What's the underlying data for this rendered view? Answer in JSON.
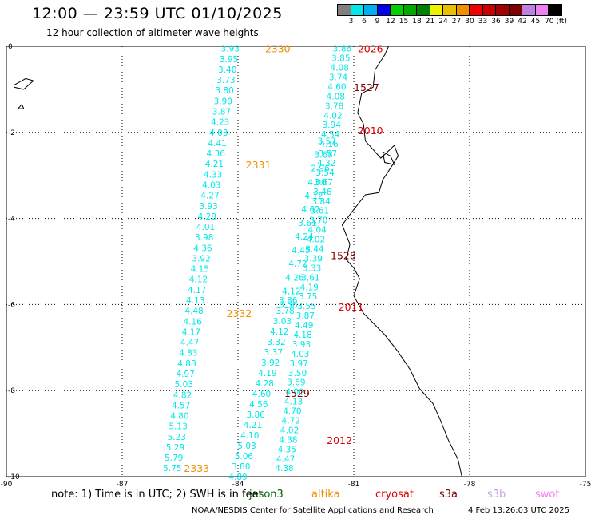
{
  "header": {
    "title": "12:00 — 23:59 UTC 01/10/2025",
    "subtitle": "12 hour collection of altimeter wave heights"
  },
  "color_scale": {
    "labels": [
      "3",
      "6",
      "9",
      "12",
      "15",
      "18",
      "21",
      "24",
      "27",
      "30",
      "33",
      "36",
      "39",
      "42",
      "45",
      "70 (ft)"
    ],
    "colors": [
      "#808080",
      "#00e8e8",
      "#00b0f0",
      "#0000e8",
      "#00d000",
      "#00a800",
      "#008000",
      "#f0f000",
      "#e8c000",
      "#f09000",
      "#f00000",
      "#c80000",
      "#a00000",
      "#800000",
      "#c080e0",
      "#f080f0",
      "#000000"
    ]
  },
  "footer": {
    "note": "note: 1) Time is in UTC; 2) SWH is in feet",
    "credit": "NOAA/NESDIS Center for Satellite Applications and Research",
    "timestamp": "4 Feb 13:26:03 UTC 2025"
  },
  "legend": [
    {
      "label": "jason3",
      "color": "#006400"
    },
    {
      "label": "altika",
      "color": "#f09000"
    },
    {
      "label": "cryosat",
      "color": "#e00000"
    },
    {
      "label": "s3a",
      "color": "#800000"
    },
    {
      "label": "s3b",
      "color": "#c8a0e8"
    },
    {
      "label": "swot",
      "color": "#f080f0"
    }
  ],
  "map": {
    "x_ticks": [
      "-90",
      "-87",
      "-84",
      "-81",
      "-78",
      "-75"
    ],
    "y_ticks": [
      "0",
      "-2",
      "-4",
      "-6",
      "-8",
      "-10"
    ],
    "coast_color": "#000000",
    "grid": true,
    "pass_labels": [
      {
        "text": "2330",
        "color": "#f09000",
        "lon": -83.3,
        "lat": -0.05
      },
      {
        "text": "2331",
        "color": "#f09000",
        "lon": -83.8,
        "lat": -2.75
      },
      {
        "text": "2332",
        "color": "#f09000",
        "lon": -84.3,
        "lat": -6.2
      },
      {
        "text": "2333",
        "color": "#f09000",
        "lon": -85.4,
        "lat": -9.8
      },
      {
        "text": "2026",
        "color": "#e00000",
        "lon": -80.9,
        "lat": -0.05
      },
      {
        "text": "2010",
        "color": "#e00000",
        "lon": -80.9,
        "lat": -1.95
      },
      {
        "text": "2011",
        "color": "#e00000",
        "lon": -81.4,
        "lat": -6.05
      },
      {
        "text": "2012",
        "color": "#e00000",
        "lon": -81.7,
        "lat": -9.15
      },
      {
        "text": "1527",
        "color": "#800000",
        "lon": -81.0,
        "lat": -0.95
      },
      {
        "text": "1528",
        "color": "#800000",
        "lon": -81.6,
        "lat": -4.85
      },
      {
        "text": "1529",
        "color": "#800000",
        "lon": -82.8,
        "lat": -8.05
      }
    ],
    "tracks": [
      {
        "color": "#00e8e8",
        "lon0": -84.2,
        "lat0": -0.05,
        "lon1": -85.7,
        "lat1": -9.8,
        "values": [
          "3.93",
          "3.95",
          "3.40",
          "3.73",
          "3.80",
          "3.90",
          "3.87",
          "4.23",
          "4.03",
          "4.41",
          "4.36",
          "4.21",
          "4.33",
          "4.03",
          "4.27",
          "3.93",
          "4.28",
          "4.01",
          "3.98",
          "4.36",
          "3.92",
          "4.15",
          "4.12",
          "4.17",
          "4.13",
          "4.48",
          "4.16",
          "4.17",
          "4.47",
          "4.83",
          "4.88",
          "4.97",
          "5.03",
          "4.82",
          "4.57",
          "4.80",
          "5.13",
          "5.23",
          "5.29",
          "5.79",
          "5.75"
        ]
      },
      {
        "color": "#00e8e8",
        "lon0": -82.7,
        "lat0": -5.9,
        "lon1": -84.0,
        "lat1": -10.0,
        "values": [
          "3.86",
          "3.78",
          "3.03",
          "4.12",
          "3.32",
          "3.37",
          "3.92",
          "4.19",
          "4.28",
          "4.60",
          "4.56",
          "3.86",
          "4.21",
          "4.10",
          "5.03",
          "5.06",
          "3.80",
          "4.89"
        ]
      },
      {
        "color": "#00e8e8",
        "lon0": -81.3,
        "lat0": -0.05,
        "lon1": -82.8,
        "lat1": -9.8,
        "values": [
          "3.86",
          "3.85",
          "4.08",
          "3.74",
          "4.60",
          "4.08",
          "3.78",
          "4.02",
          "3.94",
          "4.54",
          "4.16",
          "3.57",
          "4.32",
          "3.54",
          "3.67",
          "3.46",
          "3.84",
          "3.61",
          "3.70",
          "4.04",
          "4.02",
          "3.44",
          "3.39",
          "3.33",
          "3.61",
          "4.19",
          "3.75",
          "3.55",
          "3.87",
          "4.49",
          "4.18",
          "3.93",
          "4.03",
          "3.97",
          "3.50",
          "3.69",
          "4.00",
          "4.13",
          "4.70",
          "4.72",
          "4.02",
          "4.38",
          "4.35",
          "4.47",
          "4.38"
        ]
      },
      {
        "color": "#00e8e8",
        "lon0": -81.7,
        "lat0": -2.2,
        "lon1": -82.7,
        "lat1": -6.0,
        "values": [
          "3.57",
          "3.68",
          "2.96",
          "4.00",
          "4.12",
          "4.62",
          "3.61",
          "4.24",
          "4.45",
          "4.72",
          "4.26",
          "4.12",
          "3.56"
        ]
      }
    ]
  }
}
